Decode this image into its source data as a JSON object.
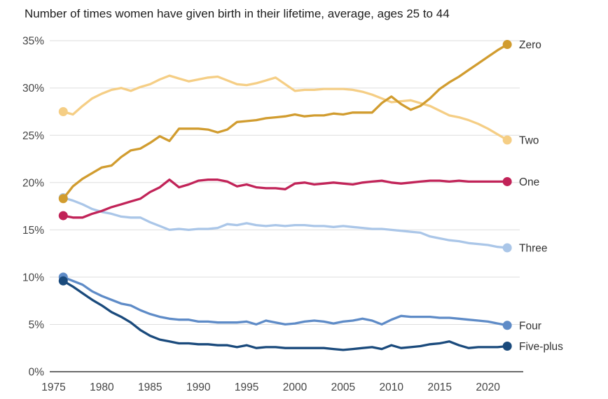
{
  "chart_data": {
    "type": "line",
    "title": "Number of times women have given birth in their lifetime, average, ages 25 to 44",
    "xlabel": "",
    "ylabel": "",
    "ylim": [
      0,
      35
    ],
    "xlim": [
      1975,
      2023
    ],
    "grid": "horizontal",
    "legend_position": "right-end-labels",
    "y_ticks": [
      0,
      5,
      10,
      15,
      20,
      25,
      30,
      35
    ],
    "y_tick_suffix": "%",
    "x_ticks": [
      1975,
      1980,
      1985,
      1990,
      1995,
      2000,
      2005,
      2010,
      2015,
      2020
    ],
    "x": [
      1976,
      1977,
      1978,
      1979,
      1980,
      1981,
      1982,
      1983,
      1984,
      1985,
      1986,
      1987,
      1988,
      1989,
      1990,
      1991,
      1992,
      1993,
      1994,
      1995,
      1996,
      1997,
      1998,
      1999,
      2000,
      2001,
      2002,
      2003,
      2004,
      2005,
      2006,
      2007,
      2008,
      2009,
      2010,
      2011,
      2012,
      2013,
      2014,
      2015,
      2016,
      2017,
      2018,
      2019,
      2020,
      2021,
      2022
    ],
    "series": [
      {
        "name": "Zero",
        "color": "#D19C2F",
        "values": [
          18.3,
          19.6,
          20.4,
          21.0,
          21.6,
          21.8,
          22.7,
          23.4,
          23.6,
          24.2,
          24.9,
          24.4,
          25.7,
          25.7,
          25.7,
          25.6,
          25.3,
          25.6,
          26.4,
          26.5,
          26.6,
          26.8,
          26.9,
          27.0,
          27.2,
          27.0,
          27.1,
          27.1,
          27.3,
          27.2,
          27.4,
          27.4,
          27.4,
          28.4,
          29.1,
          28.3,
          27.7,
          28.1,
          28.9,
          29.9,
          30.6,
          31.2,
          31.9,
          32.6,
          33.3,
          34.0,
          34.6
        ]
      },
      {
        "name": "One",
        "color": "#C12358",
        "values": [
          16.5,
          16.3,
          16.3,
          16.7,
          17.0,
          17.4,
          17.7,
          18.0,
          18.3,
          19.0,
          19.5,
          20.3,
          19.5,
          19.8,
          20.2,
          20.3,
          20.3,
          20.1,
          19.6,
          19.8,
          19.5,
          19.4,
          19.4,
          19.3,
          19.9,
          20.0,
          19.8,
          19.9,
          20.0,
          19.9,
          19.8,
          20.0,
          20.1,
          20.2,
          20.0,
          19.9,
          20.0,
          20.1,
          20.2,
          20.2,
          20.1,
          20.2,
          20.1,
          20.1,
          20.1,
          20.1,
          20.1
        ]
      },
      {
        "name": "Two",
        "color": "#F5CE85",
        "values": [
          27.5,
          27.2,
          28.1,
          28.9,
          29.4,
          29.8,
          30.0,
          29.7,
          30.1,
          30.4,
          30.9,
          31.3,
          31.0,
          30.7,
          30.9,
          31.1,
          31.2,
          30.8,
          30.4,
          30.3,
          30.5,
          30.8,
          31.1,
          30.4,
          29.7,
          29.8,
          29.8,
          29.9,
          29.9,
          29.9,
          29.8,
          29.6,
          29.3,
          28.9,
          28.5,
          28.6,
          28.7,
          28.4,
          28.1,
          27.6,
          27.1,
          26.9,
          26.6,
          26.2,
          25.7,
          25.1,
          24.5
        ]
      },
      {
        "name": "Three",
        "color": "#AAC6E8",
        "values": [
          18.4,
          18.1,
          17.7,
          17.2,
          16.9,
          16.7,
          16.4,
          16.3,
          16.3,
          15.8,
          15.4,
          15.0,
          15.1,
          15.0,
          15.1,
          15.1,
          15.2,
          15.6,
          15.5,
          15.7,
          15.5,
          15.4,
          15.5,
          15.4,
          15.5,
          15.5,
          15.4,
          15.4,
          15.3,
          15.4,
          15.3,
          15.2,
          15.1,
          15.1,
          15.0,
          14.9,
          14.8,
          14.7,
          14.3,
          14.1,
          13.9,
          13.8,
          13.6,
          13.5,
          13.4,
          13.2,
          13.1
        ]
      },
      {
        "name": "Four",
        "color": "#5E8BC7",
        "values": [
          10.0,
          9.6,
          9.2,
          8.5,
          8.0,
          7.6,
          7.2,
          7.0,
          6.5,
          6.1,
          5.8,
          5.6,
          5.5,
          5.5,
          5.3,
          5.3,
          5.2,
          5.2,
          5.2,
          5.3,
          5.0,
          5.4,
          5.2,
          5.0,
          5.1,
          5.3,
          5.4,
          5.3,
          5.1,
          5.3,
          5.4,
          5.6,
          5.4,
          5.0,
          5.5,
          5.9,
          5.8,
          5.8,
          5.8,
          5.7,
          5.7,
          5.6,
          5.5,
          5.4,
          5.3,
          5.1,
          4.9
        ]
      },
      {
        "name": "Five-plus",
        "color": "#1A4A7C",
        "values": [
          9.6,
          9.0,
          8.3,
          7.6,
          7.0,
          6.3,
          5.8,
          5.2,
          4.4,
          3.8,
          3.4,
          3.2,
          3.0,
          3.0,
          2.9,
          2.9,
          2.8,
          2.8,
          2.6,
          2.8,
          2.5,
          2.6,
          2.6,
          2.5,
          2.5,
          2.5,
          2.5,
          2.5,
          2.4,
          2.3,
          2.4,
          2.5,
          2.6,
          2.4,
          2.8,
          2.5,
          2.6,
          2.7,
          2.9,
          3.0,
          3.2,
          2.8,
          2.5,
          2.6,
          2.6,
          2.6,
          2.7
        ]
      }
    ]
  }
}
